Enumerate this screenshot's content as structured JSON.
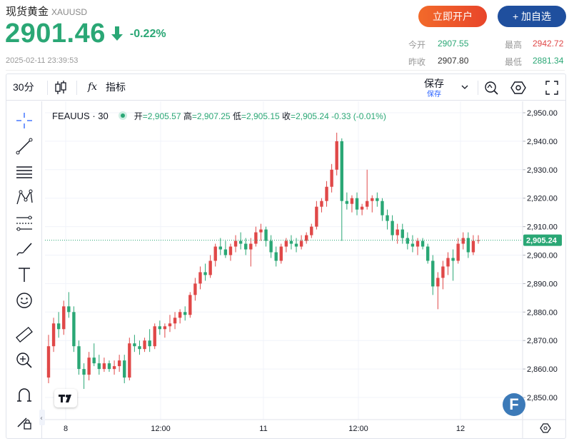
{
  "header": {
    "title": "现货黄金",
    "symbol": "XAUUSD",
    "price": "2901.46",
    "change_pct": "-0.22%",
    "timestamp": "2025-02-11 23:39:53",
    "open_account_label": "立即开户",
    "add_watch_label": "+ 加自选"
  },
  "stats": {
    "today_open_label": "今开",
    "today_open": "2907.55",
    "prev_close_label": "昨收",
    "prev_close": "2907.80",
    "high_label": "最高",
    "high": "2942.72",
    "low_label": "最低",
    "low": "2881.34"
  },
  "toolbar": {
    "interval": "30分",
    "indicators_label": "指标",
    "save_label": "保存",
    "save_sub": "保存"
  },
  "colors": {
    "up": "#e04848",
    "down": "#2aa775",
    "accent": "#2aa775"
  },
  "legend": {
    "symbol": "FEAUUS · 30",
    "open_label": "开",
    "open": "2,905.57",
    "high_label": "高",
    "high": "2,907.25",
    "low_label": "低",
    "low": "2,905.15",
    "close_label": "收",
    "close": "2,905.24",
    "change": "-0.33 (-0.01%)"
  },
  "chart_data": {
    "type": "candlestick",
    "y_ticks": [
      "2,950.00",
      "2,940.00",
      "2,930.00",
      "2,920.00",
      "2,910.00",
      "2,900.00",
      "2,890.00",
      "2,880.00",
      "2,870.00",
      "2,860.00",
      "2,850.00"
    ],
    "ylim": [
      2844,
      2953
    ],
    "x_ticks": [
      "8",
      "12:00",
      "11",
      "12:00",
      "12"
    ],
    "last_price_label": "2,905.24",
    "last_price": 2905.24,
    "candles": [
      [
        2857,
        2872,
        2855,
        2868
      ],
      [
        2868,
        2878,
        2866,
        2876
      ],
      [
        2876,
        2880,
        2871,
        2874
      ],
      [
        2874,
        2884,
        2872,
        2882
      ],
      [
        2882,
        2887,
        2878,
        2880
      ],
      [
        2880,
        2882,
        2866,
        2868
      ],
      [
        2868,
        2870,
        2858,
        2860
      ],
      [
        2860,
        2862,
        2853,
        2858
      ],
      [
        2858,
        2866,
        2856,
        2864
      ],
      [
        2864,
        2869,
        2861,
        2862
      ],
      [
        2862,
        2865,
        2858,
        2860
      ],
      [
        2860,
        2864,
        2859,
        2862
      ],
      [
        2862,
        2863,
        2859,
        2860
      ],
      [
        2860,
        2863,
        2858,
        2861
      ],
      [
        2861,
        2865,
        2859,
        2863
      ],
      [
        2863,
        2865,
        2855,
        2857
      ],
      [
        2857,
        2871,
        2856,
        2869
      ],
      [
        2869,
        2872,
        2866,
        2868
      ],
      [
        2868,
        2870,
        2865,
        2867
      ],
      [
        2867,
        2871,
        2866,
        2870
      ],
      [
        2870,
        2874,
        2866,
        2868
      ],
      [
        2868,
        2876,
        2867,
        2875
      ],
      [
        2875,
        2877,
        2872,
        2874
      ],
      [
        2874,
        2876,
        2871,
        2875
      ],
      [
        2875,
        2879,
        2873,
        2876
      ],
      [
        2876,
        2880,
        2874,
        2878
      ],
      [
        2878,
        2881,
        2876,
        2880
      ],
      [
        2880,
        2882,
        2877,
        2879
      ],
      [
        2879,
        2887,
        2878,
        2886
      ],
      [
        2886,
        2892,
        2884,
        2890
      ],
      [
        2890,
        2896,
        2888,
        2894
      ],
      [
        2894,
        2897,
        2891,
        2893
      ],
      [
        2893,
        2900,
        2892,
        2898
      ],
      [
        2898,
        2904,
        2896,
        2903
      ],
      [
        2903,
        2906,
        2900,
        2902
      ],
      [
        2902,
        2905,
        2899,
        2900
      ],
      [
        2900,
        2904,
        2898,
        2903
      ],
      [
        2903,
        2907,
        2901,
        2905
      ],
      [
        2905,
        2908,
        2902,
        2904
      ],
      [
        2904,
        2906,
        2900,
        2902
      ],
      [
        2902,
        2906,
        2896,
        2904
      ],
      [
        2904,
        2910,
        2903,
        2908
      ],
      [
        2908,
        2911,
        2905,
        2909
      ],
      [
        2909,
        2910,
        2903,
        2905
      ],
      [
        2905,
        2907,
        2899,
        2901
      ],
      [
        2901,
        2903,
        2896,
        2898
      ],
      [
        2898,
        2904,
        2897,
        2903
      ],
      [
        2903,
        2906,
        2901,
        2905
      ],
      [
        2905,
        2907,
        2902,
        2904
      ],
      [
        2904,
        2906,
        2901,
        2903
      ],
      [
        2903,
        2907,
        2902,
        2905
      ],
      [
        2905,
        2908,
        2904,
        2907
      ],
      [
        2907,
        2911,
        2906,
        2910
      ],
      [
        2910,
        2919,
        2909,
        2917
      ],
      [
        2917,
        2920,
        2915,
        2919
      ],
      [
        2919,
        2926,
        2917,
        2924
      ],
      [
        2924,
        2932,
        2922,
        2930
      ],
      [
        2930,
        2943,
        2928,
        2940
      ],
      [
        2940,
        2941,
        2905,
        2919
      ],
      [
        2919,
        2922,
        2916,
        2918
      ],
      [
        2918,
        2921,
        2915,
        2920
      ],
      [
        2920,
        2922,
        2914,
        2916
      ],
      [
        2916,
        2918,
        2914,
        2917
      ],
      [
        2917,
        2930,
        2916,
        2919
      ],
      [
        2919,
        2921,
        2915,
        2920
      ],
      [
        2920,
        2922,
        2917,
        2919
      ],
      [
        2919,
        2920,
        2912,
        2914
      ],
      [
        2914,
        2916,
        2909,
        2912
      ],
      [
        2912,
        2914,
        2905,
        2907
      ],
      [
        2907,
        2911,
        2904,
        2909
      ],
      [
        2909,
        2911,
        2904,
        2906
      ],
      [
        2906,
        2908,
        2902,
        2904
      ],
      [
        2904,
        2907,
        2901,
        2903
      ],
      [
        2903,
        2906,
        2900,
        2905
      ],
      [
        2905,
        2906,
        2902,
        2903
      ],
      [
        2903,
        2904,
        2897,
        2898
      ],
      [
        2898,
        2900,
        2886,
        2889
      ],
      [
        2889,
        2894,
        2881,
        2892
      ],
      [
        2892,
        2898,
        2888,
        2896
      ],
      [
        2896,
        2901,
        2893,
        2899
      ],
      [
        2899,
        2902,
        2891,
        2898
      ],
      [
        2898,
        2906,
        2897,
        2904
      ],
      [
        2904,
        2908,
        2902,
        2906
      ],
      [
        2906,
        2908,
        2899,
        2901
      ],
      [
        2901,
        2907,
        2900,
        2905
      ],
      [
        2905,
        2907,
        2904,
        2905.24
      ]
    ]
  }
}
